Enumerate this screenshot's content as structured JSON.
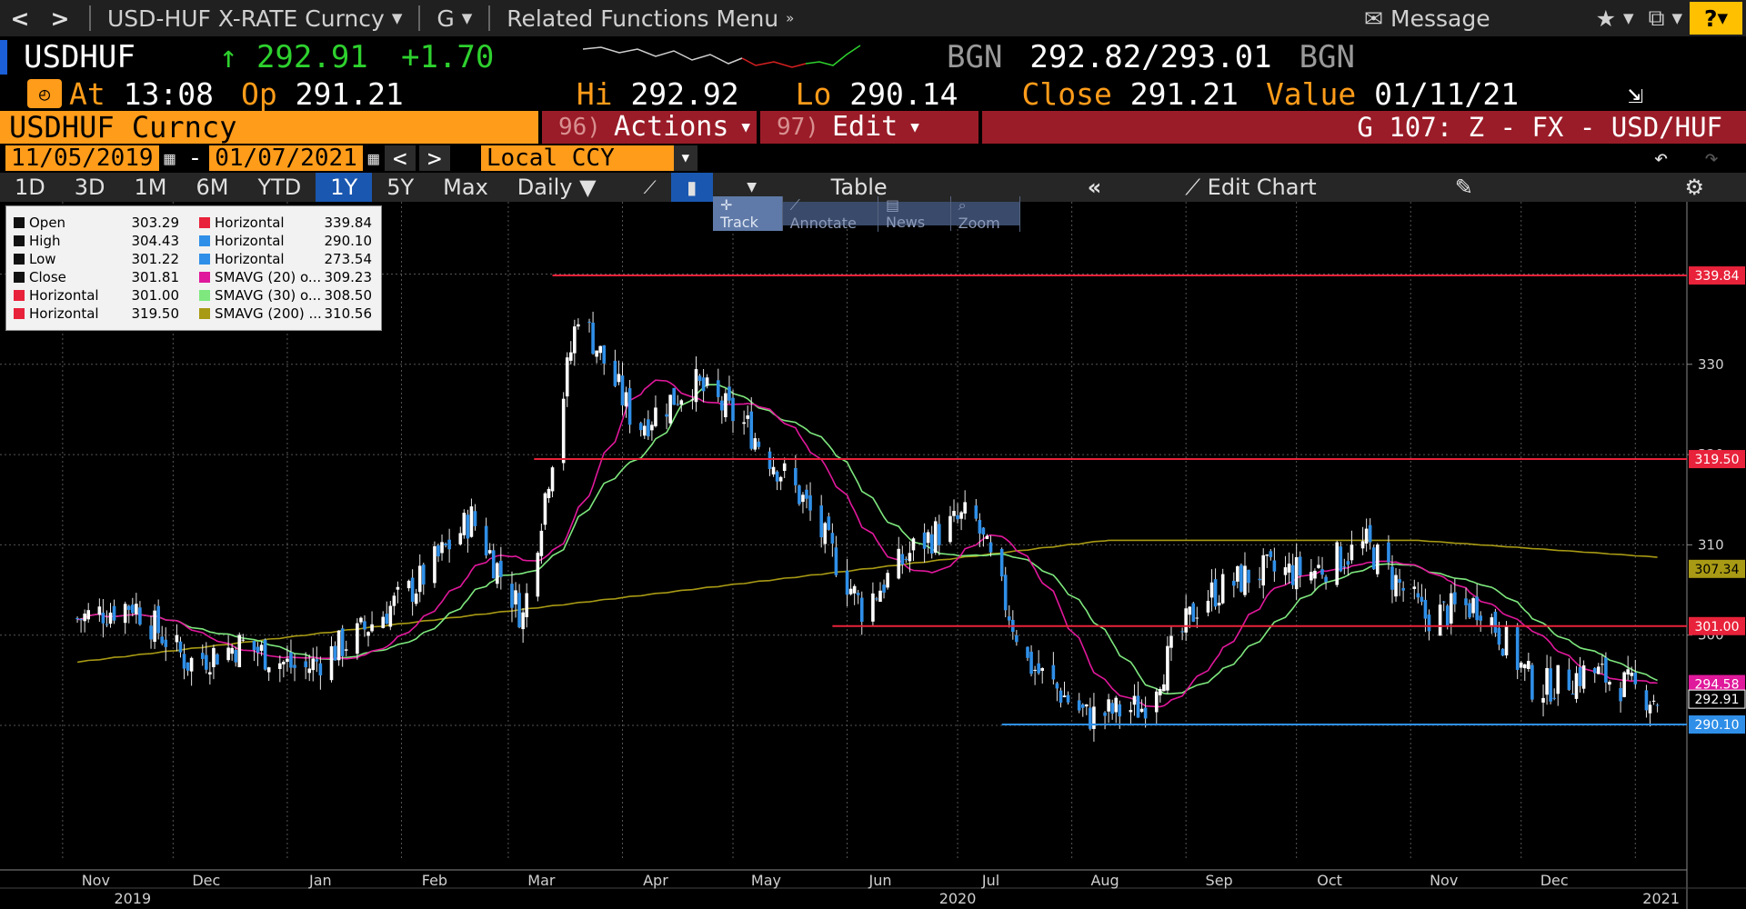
{
  "topbar": {
    "back": "<",
    "forward": ">",
    "security_menu": "USD-HUF X-RATE Curncy",
    "function_menu": "G",
    "related": "Related Functions Menu",
    "message": "Message",
    "help": "?"
  },
  "quote": {
    "ticker": "USDHUF",
    "last": "↑ 292.91",
    "change": "+1.70",
    "source": "BGN",
    "bid": "292.82",
    "ask": "293.01",
    "source2": "BGN",
    "at_label": "At",
    "at_value": "13:08",
    "open_label": "Op",
    "open_value": "291.21",
    "high_label": "Hi",
    "high_value": "292.92",
    "low_label": "Lo",
    "low_value": "290.14",
    "close_label": "Close",
    "close_value": "291.21",
    "value_label": "Value",
    "value_date": "01/11/21"
  },
  "header": {
    "security": "USDHUF Curncy",
    "actions_num": "96)",
    "actions": "Actions",
    "edit_num": "97)",
    "edit": "Edit",
    "graph_title": "G 107: Z - FX - USD/HUF"
  },
  "range": {
    "start": "11/05/2019",
    "end": "01/07/2021",
    "currency": "Local CCY"
  },
  "toolbar": {
    "periods": [
      "1D",
      "3D",
      "1M",
      "6M",
      "YTD",
      "1Y",
      "5Y",
      "Max"
    ],
    "active_period": "1Y",
    "frequency": "Daily",
    "table": "Table",
    "edit_chart": "Edit Chart",
    "modes": [
      "Track",
      "Annotate",
      "News",
      "Zoom"
    ]
  },
  "legend": {
    "left": [
      {
        "label": "Open",
        "value": "303.29",
        "color": "#111111"
      },
      {
        "label": "High",
        "value": "304.43",
        "color": "#111111"
      },
      {
        "label": "Low",
        "value": "301.22",
        "color": "#111111"
      },
      {
        "label": "Close",
        "value": "301.81",
        "color": "#111111"
      },
      {
        "label": "Horizontal",
        "value": "301.00",
        "color": "#e8223a"
      },
      {
        "label": "Horizontal",
        "value": "319.50",
        "color": "#e8223a"
      }
    ],
    "right": [
      {
        "label": "Horizontal",
        "value": "339.84",
        "color": "#e8223a"
      },
      {
        "label": "Horizontal",
        "value": "290.10",
        "color": "#2f8fe8"
      },
      {
        "label": "Horizontal",
        "value": "273.54",
        "color": "#2f8fe8"
      },
      {
        "label": "SMAVG (20)  o...",
        "value": "309.23",
        "color": "#e0189b"
      },
      {
        "label": "SMAVG (30)  o...",
        "value": "308.50",
        "color": "#7ee87e"
      },
      {
        "label": "SMAVG (200)  ...",
        "value": "310.56",
        "color": "#a89a14"
      }
    ]
  },
  "chart_data": {
    "type": "line",
    "title": "USDHUF Curncy daily candles",
    "y_axis_side": "right",
    "ylim": [
      275,
      348
    ],
    "y_ticks": [
      300,
      310,
      320,
      330
    ],
    "x_month_labels": [
      "Nov",
      "Dec",
      "Jan",
      "Feb",
      "Mar",
      "Apr",
      "May",
      "Jun",
      "Jul",
      "Aug",
      "Sep",
      "Oct",
      "Nov",
      "Dec"
    ],
    "x_year_labels": [
      "2019",
      "2020",
      "2021"
    ],
    "price_path_monthly": {
      "dates": [
        "2019-11-05",
        "2019-11-20",
        "2019-12-05",
        "2019-12-20",
        "2020-01-05",
        "2020-01-20",
        "2020-02-05",
        "2020-02-20",
        "2020-03-05",
        "2020-03-20",
        "2020-04-05",
        "2020-04-20",
        "2020-05-05",
        "2020-05-20",
        "2020-06-05",
        "2020-06-20",
        "2020-07-05",
        "2020-07-20",
        "2020-08-05",
        "2020-08-20",
        "2020-09-05",
        "2020-09-20",
        "2020-10-05",
        "2020-10-20",
        "2020-11-05",
        "2020-11-20",
        "2020-12-05",
        "2020-12-20",
        "2021-01-07"
      ],
      "close": [
        301.8,
        303.5,
        297.0,
        299.0,
        296.0,
        300.0,
        305.5,
        313.0,
        302.0,
        336.0,
        323.0,
        328.0,
        323.0,
        315.0,
        303.0,
        310.0,
        313.5,
        297.0,
        291.0,
        292.0,
        304.0,
        307.0,
        307.0,
        310.0,
        302.0,
        303.5,
        294.0,
        296.0,
        292.9
      ]
    },
    "horizontal_lines": [
      {
        "value": 339.84,
        "color": "#e8223a"
      },
      {
        "value": 319.5,
        "color": "#e8223a"
      },
      {
        "value": 301.0,
        "color": "#e8223a"
      },
      {
        "value": 290.1,
        "color": "#2f8fe8"
      }
    ],
    "price_labels": [
      {
        "value": "339.84",
        "color": "#e8223a"
      },
      {
        "value": "319.50",
        "color": "#e8223a"
      },
      {
        "value": "307.34",
        "color": "#a89a14"
      },
      {
        "value": "301.00",
        "color": "#e8223a"
      },
      {
        "value": "294.58",
        "color": "#e0189b"
      },
      {
        "value": "292.91",
        "color": "#000000"
      },
      {
        "value": "290.10",
        "color": "#2f8fe8"
      }
    ],
    "series": [
      {
        "name": "SMAVG (20)",
        "color": "#e0189b"
      },
      {
        "name": "SMAVG (30)",
        "color": "#7ee87e"
      },
      {
        "name": "SMAVG (200)",
        "color": "#a89a14"
      }
    ]
  }
}
